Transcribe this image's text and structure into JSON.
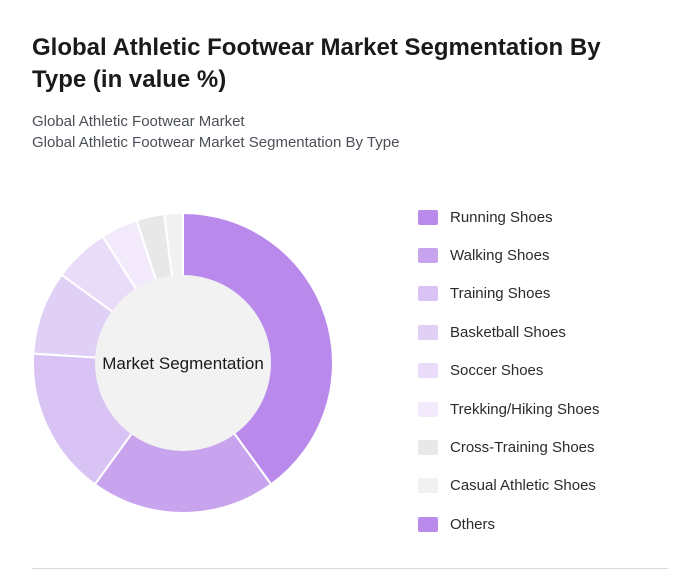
{
  "title": "Global Athletic Footwear Market Segmentation By Type (in value %)",
  "subtitle_1": "Global Athletic Footwear Market",
  "subtitle_2": "Global Athletic Footwear Market Segmentation By Type",
  "chart_data": {
    "type": "pie",
    "variant": "donut",
    "center_label": "Market Segmentation",
    "legend_position": "right",
    "categories": [
      "Running Shoes",
      "Walking Shoes",
      "Training Shoes",
      "Basketball Shoes",
      "Soccer Shoes",
      "Trekking/Hiking Shoes",
      "Cross-Training Shoes",
      "Casual Athletic Shoes",
      "Others"
    ],
    "values": [
      40,
      20,
      16,
      9,
      6,
      4,
      3,
      2,
      0
    ],
    "colors": [
      "#b98aec",
      "#c8a4ef",
      "#d9c3f4",
      "#e1d0f6",
      "#e9dcf8",
      "#f2eafb",
      "#e8e8e8",
      "#f1f1f1",
      "#b98aec"
    ]
  }
}
